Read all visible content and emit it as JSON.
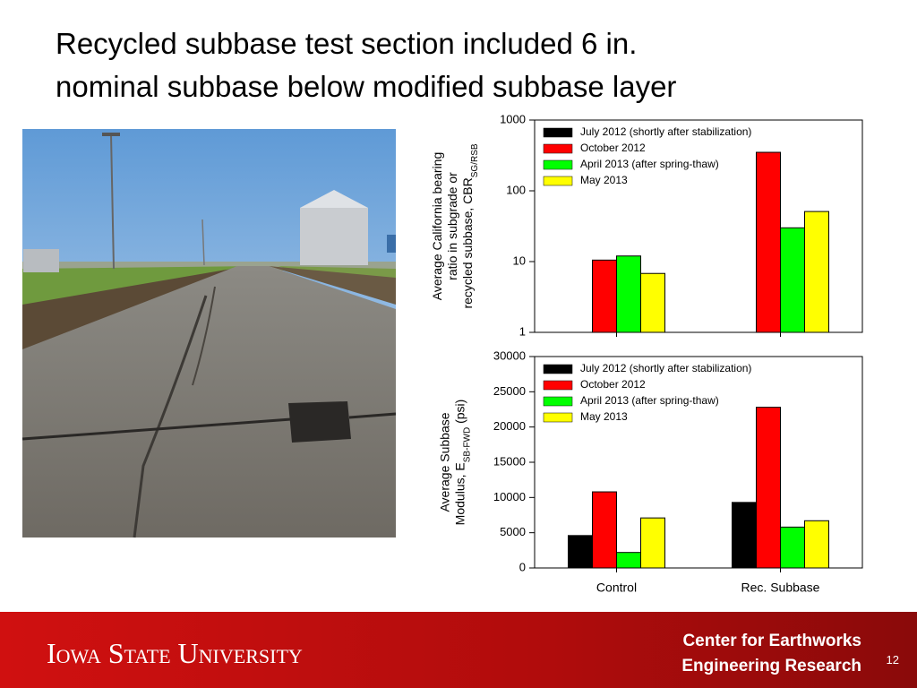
{
  "slide": {
    "title_lines": [
      "Recycled subbase test section included 6 in.",
      "nominal subbase below modified subbase layer"
    ],
    "footer_university": "Iowa State University",
    "footer_center_lines": [
      "Center for Earthworks",
      "Engineering Research"
    ],
    "page_number": "12"
  },
  "chart_data": [
    {
      "type": "bar",
      "log_scale": true,
      "ylabel_lines": [
        [
          {
            "text": "Average California bearing"
          }
        ],
        [
          {
            "text": "ratio in subgrade or"
          }
        ],
        [
          {
            "text": "recycled subbase, CBR"
          },
          {
            "text": "SG/RSB",
            "sub": true
          }
        ]
      ],
      "categories": [
        null,
        null
      ],
      "ylim": [
        1,
        1000
      ],
      "yticks": [
        1,
        10,
        100,
        1000
      ],
      "legend": "upper left",
      "series": [
        {
          "name": "July 2012 (shortly after stabilization)",
          "color": "#000000",
          "values": [
            null,
            null
          ]
        },
        {
          "name": "October 2012",
          "color": "#ff0000",
          "values": [
            10.5,
            350
          ]
        },
        {
          "name": "April 2013 (after spring-thaw)",
          "color": "#00ff00",
          "values": [
            12,
            30
          ]
        },
        {
          "name": "May 2013",
          "color": "#ffff00",
          "values": [
            6.8,
            51
          ]
        }
      ]
    },
    {
      "type": "bar",
      "log_scale": false,
      "ylabel_lines": [
        [
          {
            "text": "Average Subbase"
          }
        ],
        [
          {
            "text": "Modulus, E"
          },
          {
            "text": "SB-FWD",
            "sub": true
          },
          {
            "text": " (psi)"
          }
        ]
      ],
      "categories": [
        "Control",
        "Rec. Subbase"
      ],
      "ylim": [
        0,
        30000
      ],
      "yticks": [
        0,
        5000,
        10000,
        15000,
        20000,
        25000,
        30000
      ],
      "legend": "upper left",
      "series": [
        {
          "name": "July 2012 (shortly after stabilization)",
          "color": "#000000",
          "values": [
            4600,
            9300
          ]
        },
        {
          "name": "October 2012",
          "color": "#ff0000",
          "values": [
            10800,
            22800
          ]
        },
        {
          "name": "April 2013 (after spring-thaw)",
          "color": "#00ff00",
          "values": [
            2200,
            5800
          ]
        },
        {
          "name": "May 2013",
          "color": "#ffff00",
          "values": [
            7100,
            6700
          ]
        }
      ]
    }
  ]
}
